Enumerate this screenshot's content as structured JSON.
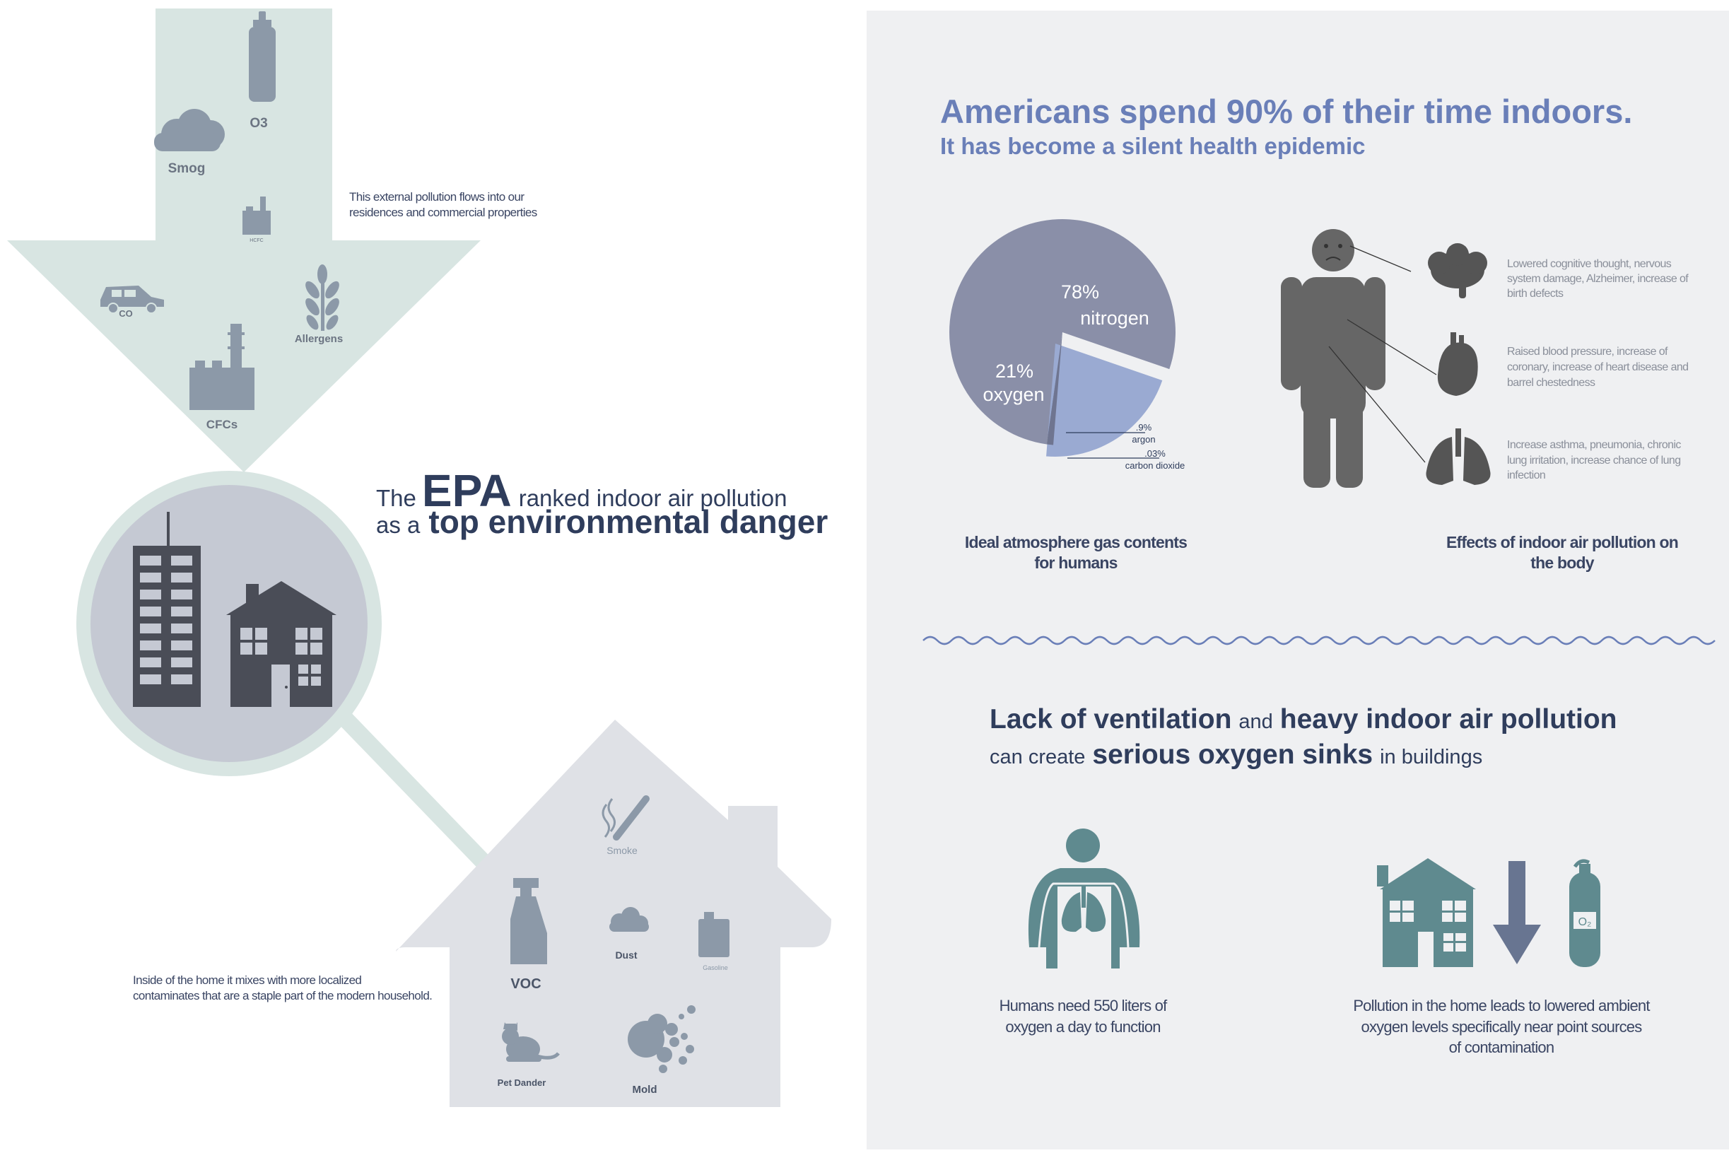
{
  "left": {
    "arrow": {
      "labels": {
        "o3": "O3",
        "smog": "Smog",
        "hcfc": "HCFC",
        "co": "CO",
        "allergens": "Allergens",
        "cfcs": "CFCs"
      },
      "note_line1": "This external pollution flows into our",
      "note_line2": "residences and commercial properties"
    },
    "headline": {
      "the": "The",
      "epa": "EPA",
      "ranked": "ranked indoor air pollution",
      "as_a": "as a",
      "top": "top environmental danger"
    },
    "house": {
      "labels": {
        "smoke": "Smoke",
        "voc": "VOC",
        "dust": "Dust",
        "gasoline": "Gasoline",
        "pet_dander": "Pet Dander",
        "mold": "Mold"
      },
      "note_line1": "Inside of the home it mixes with more localized",
      "note_line2": "contaminates that are a staple part of the modern household."
    }
  },
  "right": {
    "title_line1": "Americans spend 90% of their time indoors.",
    "title_line2": "It has become a silent health epidemic",
    "chart_data": {
      "type": "pie",
      "slices": [
        {
          "label": "nitrogen",
          "value": 78,
          "display": "78%",
          "color": "#8a8fa8"
        },
        {
          "label": "oxygen",
          "value": 21,
          "display": "21%",
          "color": "#9aaad2"
        },
        {
          "label": "argon",
          "value": 0.9,
          "display": ".9%",
          "color": "#6f7590"
        },
        {
          "label": "carbon dioxide",
          "value": 0.03,
          "display": ".03%",
          "color": "#5a6078"
        }
      ],
      "caption_line1": "Ideal atmosphere gas contents",
      "caption_line2": "for humans"
    },
    "effects": {
      "brain": [
        "Lowered cognitive thought, nervous",
        "system damage, Alzheimer, increase of",
        "birth defects"
      ],
      "heart": [
        "Raised blood pressure, increase of",
        "coronary, increase of heart disease and",
        "barrel chestedness"
      ],
      "lungs": [
        "Increase asthma, pneumonia, chronic",
        "lung irritation, increase chance of lung",
        "infection"
      ],
      "caption_line1": "Effects of indoor air pollution on",
      "caption_line2": "the body"
    },
    "sub2": {
      "lack": "Lack of ventilation",
      "and": "and",
      "heavy": "heavy indoor air pollution",
      "can_create": "can create",
      "serious": "serious oxygen sinks",
      "in_buildings": "in buildings"
    },
    "human_caption": [
      "Humans need 550 liters of",
      "oxygen a day to function"
    ],
    "pollution_caption": [
      "Pollution in the home leads to lowered ambient",
      "oxygen levels specifically near point sources",
      "of contamination"
    ],
    "o2_label": "O₂"
  },
  "colors": {
    "arrow": "#d8e5e2",
    "right_bg": "#eff0f2",
    "navy": "#2f3d5c",
    "title_blue": "#6a7fb8",
    "teal": "#5f8a8f",
    "icon_gray": "#8c99a8",
    "dark_icon": "#4a4d57"
  }
}
